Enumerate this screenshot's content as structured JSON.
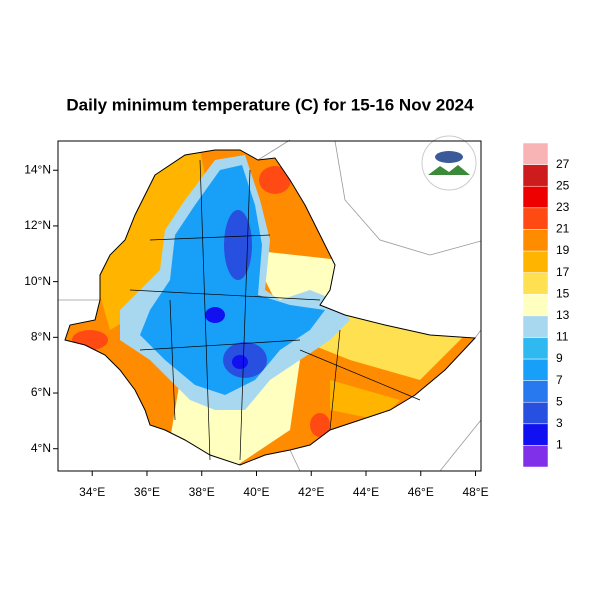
{
  "chart_data": {
    "type": "map",
    "title": "Daily minimum temperature (C) for 15-16 Nov 2024",
    "xlim": [
      32.75,
      48.2
    ],
    "ylim": [
      3.2,
      15.05
    ],
    "xticks": [
      {
        "value": 34,
        "label": "34°E"
      },
      {
        "value": 36,
        "label": "36°E"
      },
      {
        "value": 38,
        "label": "38°E"
      },
      {
        "value": 40,
        "label": "40°E"
      },
      {
        "value": 42,
        "label": "42°E"
      },
      {
        "value": 44,
        "label": "44°E"
      },
      {
        "value": 46,
        "label": "46°E"
      },
      {
        "value": 48,
        "label": "48°E"
      }
    ],
    "yticks": [
      {
        "value": 4,
        "label": "4°N"
      },
      {
        "value": 6,
        "label": "6°N"
      },
      {
        "value": 8,
        "label": "8°N"
      },
      {
        "value": 10,
        "label": "10°N"
      },
      {
        "value": 12,
        "label": "12°N"
      },
      {
        "value": 14,
        "label": "14°N"
      }
    ],
    "colorbar": {
      "levels": [
        1,
        3,
        5,
        7,
        9,
        11,
        13,
        15,
        17,
        19,
        21,
        23,
        25,
        27
      ],
      "colors": [
        "#8030e8",
        "#1010f0",
        "#2850e0",
        "#2878f0",
        "#18a0f8",
        "#30b8f0",
        "#a8d8f0",
        "#ffffc0",
        "#ffe050",
        "#ffb400",
        "#ff8c00",
        "#ff4a14",
        "#ee0000",
        "#cc1c1c",
        "#f8b4b4"
      ]
    }
  }
}
